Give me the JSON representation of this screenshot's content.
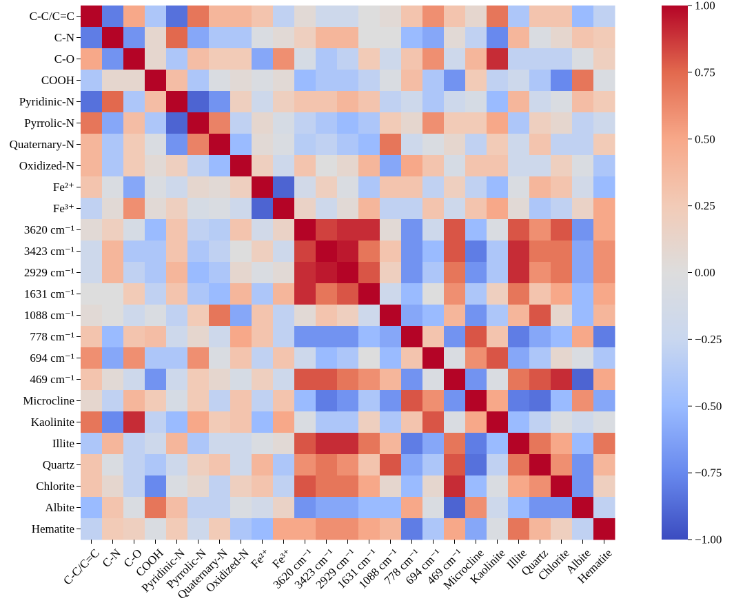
{
  "chart_data": {
    "type": "heatmap",
    "title": "",
    "xlabel": "",
    "ylabel": "",
    "row_labels": [
      "C-C/C=C",
      "C-N",
      "C-O",
      "COOH",
      "Pyridinic-N",
      "Pyrrolic-N",
      "Quaternary-N",
      "Oxidized-N",
      "Fe²⁺",
      "Fe³⁺",
      "3620 cm⁻¹",
      "3423 cm⁻¹",
      "2929 cm⁻¹",
      "1631 cm⁻¹",
      "1088 cm⁻¹",
      "778 cm⁻¹",
      "694 cm⁻¹",
      "469 cm⁻¹",
      "Microcline",
      "Kaolinite",
      "Illite",
      "Quartz",
      "Chlorite",
      "Albite",
      "Hematite"
    ],
    "col_labels": [
      "C-C/C=C",
      "C-N",
      "C-O",
      "COOH",
      "Pyridinic-N",
      "Pyrrolic-N",
      "Quaternary-N",
      "Oxidized-N",
      "Fe²⁺",
      "Fe³⁺",
      "3620 cm⁻¹",
      "3423 cm⁻¹",
      "2929 cm⁻¹",
      "1631 cm⁻¹",
      "1088 cm⁻¹",
      "778 cm⁻¹",
      "694 cm⁻¹",
      "469 cm⁻¹",
      "Microcline",
      "Kaolinite",
      "Illite",
      "Quartz",
      "Chlorite",
      "Albite",
      "Hematite"
    ],
    "values": [
      [
        1.0,
        -0.8,
        0.5,
        -0.4,
        -0.85,
        0.7,
        0.4,
        0.4,
        0.3,
        -0.3,
        0.05,
        -0.2,
        -0.2,
        0.0,
        0.05,
        0.3,
        0.6,
        0.3,
        0.1,
        0.7,
        -0.4,
        0.3,
        0.3,
        -0.5,
        -0.3
      ],
      [
        -0.8,
        1.0,
        -0.7,
        0.1,
        0.75,
        -0.6,
        -0.4,
        -0.4,
        -0.05,
        0.05,
        0.2,
        0.4,
        0.4,
        0.0,
        0.0,
        -0.5,
        -0.6,
        0.05,
        -0.3,
        -0.75,
        0.4,
        -0.05,
        0.1,
        0.3,
        0.25
      ],
      [
        0.5,
        -0.7,
        1.0,
        0.1,
        -0.4,
        0.35,
        0.25,
        0.25,
        -0.6,
        0.6,
        -0.1,
        -0.4,
        -0.3,
        0.25,
        -0.2,
        0.3,
        0.6,
        -0.2,
        0.4,
        0.9,
        -0.3,
        -0.3,
        -0.3,
        -0.05,
        0.2
      ],
      [
        -0.4,
        0.1,
        0.1,
        1.0,
        0.35,
        -0.4,
        -0.05,
        0.05,
        -0.05,
        0.05,
        -0.5,
        -0.4,
        -0.4,
        -0.3,
        -0.05,
        0.35,
        -0.4,
        -0.7,
        0.25,
        -0.3,
        -0.2,
        -0.4,
        -0.75,
        0.7,
        -0.05
      ],
      [
        -0.85,
        0.75,
        -0.4,
        0.35,
        1.0,
        -0.9,
        -0.7,
        0.2,
        -0.2,
        0.2,
        0.3,
        0.3,
        0.4,
        0.3,
        -0.3,
        -0.2,
        -0.4,
        -0.2,
        -0.1,
        -0.5,
        0.4,
        -0.2,
        -0.05,
        0.35,
        0.25
      ],
      [
        0.7,
        -0.6,
        0.35,
        -0.4,
        -0.9,
        1.0,
        0.65,
        -0.3,
        0.1,
        -0.1,
        -0.3,
        -0.4,
        -0.5,
        -0.4,
        0.25,
        0.1,
        0.6,
        0.25,
        0.25,
        0.5,
        -0.4,
        0.2,
        0.1,
        -0.3,
        -0.2
      ],
      [
        0.4,
        -0.4,
        0.25,
        -0.05,
        -0.7,
        0.65,
        1.0,
        -0.5,
        0.05,
        -0.05,
        -0.35,
        -0.3,
        -0.4,
        -0.5,
        0.7,
        -0.2,
        -0.05,
        0.1,
        -0.3,
        0.25,
        -0.2,
        0.3,
        -0.3,
        -0.3,
        0.25
      ],
      [
        0.4,
        -0.4,
        0.25,
        0.05,
        0.2,
        -0.3,
        -0.5,
        1.0,
        0.2,
        -0.2,
        0.3,
        0.0,
        0.1,
        0.4,
        -0.6,
        0.5,
        0.3,
        -0.1,
        0.3,
        0.3,
        -0.2,
        -0.2,
        0.2,
        -0.05,
        -0.4
      ],
      [
        0.3,
        -0.05,
        -0.6,
        -0.05,
        -0.2,
        0.1,
        0.05,
        0.2,
        1.0,
        -0.9,
        -0.15,
        0.2,
        -0.05,
        -0.4,
        0.3,
        0.3,
        -0.3,
        0.2,
        -0.3,
        -0.5,
        -0.05,
        0.4,
        0.3,
        -0.15,
        -0.5
      ],
      [
        -0.3,
        0.05,
        0.6,
        0.05,
        0.2,
        -0.1,
        -0.05,
        -0.2,
        -0.9,
        1.0,
        0.15,
        -0.2,
        0.05,
        0.4,
        -0.3,
        -0.3,
        0.3,
        -0.2,
        0.3,
        0.5,
        0.05,
        -0.4,
        -0.3,
        0.15,
        0.5
      ],
      [
        0.05,
        0.2,
        -0.1,
        -0.5,
        0.3,
        -0.3,
        -0.35,
        0.3,
        -0.15,
        0.15,
        1.0,
        0.85,
        0.9,
        0.9,
        0.05,
        -0.7,
        -0.2,
        0.8,
        -0.5,
        -0.05,
        0.8,
        0.6,
        0.8,
        -0.7,
        0.5
      ],
      [
        -0.2,
        0.4,
        -0.4,
        -0.4,
        0.3,
        -0.4,
        -0.3,
        0.0,
        0.2,
        -0.2,
        0.85,
        1.0,
        0.95,
        0.7,
        0.3,
        -0.7,
        -0.5,
        0.8,
        -0.8,
        -0.4,
        0.9,
        0.7,
        0.7,
        -0.6,
        0.6
      ],
      [
        -0.2,
        0.4,
        -0.3,
        -0.4,
        0.4,
        -0.5,
        -0.4,
        0.1,
        -0.05,
        0.05,
        0.9,
        0.95,
        1.0,
        0.8,
        0.2,
        -0.7,
        -0.4,
        0.7,
        -0.7,
        -0.4,
        0.9,
        0.6,
        0.7,
        -0.6,
        0.6
      ],
      [
        0.0,
        0.0,
        0.25,
        -0.3,
        0.3,
        -0.4,
        -0.5,
        0.4,
        -0.4,
        0.4,
        0.9,
        0.7,
        0.8,
        1.0,
        -0.2,
        -0.5,
        0.0,
        0.6,
        -0.4,
        0.2,
        0.7,
        0.3,
        0.5,
        -0.5,
        0.5
      ],
      [
        0.05,
        0.0,
        -0.2,
        -0.05,
        -0.3,
        0.25,
        0.7,
        -0.6,
        0.3,
        -0.3,
        0.05,
        0.3,
        0.2,
        -0.2,
        1.0,
        -0.6,
        -0.5,
        0.4,
        -0.7,
        -0.4,
        0.4,
        0.8,
        0.1,
        -0.5,
        0.4
      ],
      [
        0.3,
        -0.5,
        0.3,
        0.35,
        -0.2,
        0.1,
        -0.2,
        0.5,
        0.3,
        -0.3,
        -0.7,
        -0.7,
        -0.7,
        -0.5,
        -0.6,
        1.0,
        0.3,
        -0.7,
        0.8,
        0.3,
        -0.8,
        -0.6,
        -0.5,
        0.5,
        -0.8
      ],
      [
        0.6,
        -0.6,
        0.6,
        -0.4,
        -0.4,
        0.6,
        -0.05,
        0.3,
        -0.3,
        0.3,
        -0.2,
        -0.5,
        -0.4,
        0.0,
        -0.5,
        0.3,
        1.0,
        -0.05,
        0.6,
        0.8,
        -0.6,
        -0.4,
        0.1,
        -0.05,
        -0.4
      ],
      [
        0.3,
        0.05,
        -0.2,
        -0.7,
        -0.2,
        0.25,
        0.1,
        -0.1,
        0.2,
        -0.2,
        0.8,
        0.8,
        0.7,
        0.6,
        0.4,
        -0.7,
        -0.05,
        1.0,
        -0.7,
        -0.05,
        0.7,
        0.8,
        0.9,
        -0.9,
        0.5
      ],
      [
        0.1,
        -0.3,
        0.4,
        0.25,
        -0.1,
        0.25,
        -0.3,
        0.3,
        -0.3,
        0.3,
        -0.5,
        -0.8,
        -0.7,
        -0.4,
        -0.7,
        0.8,
        0.6,
        -0.7,
        1.0,
        0.5,
        -0.8,
        -0.85,
        -0.5,
        0.6,
        -0.6
      ],
      [
        0.7,
        -0.75,
        0.9,
        -0.3,
        -0.5,
        0.5,
        0.25,
        0.3,
        -0.5,
        0.5,
        -0.05,
        -0.4,
        -0.4,
        0.2,
        -0.4,
        0.3,
        0.8,
        -0.05,
        0.5,
        1.0,
        -0.5,
        -0.3,
        -0.05,
        -0.2,
        -0.05
      ],
      [
        -0.4,
        0.4,
        -0.3,
        -0.2,
        0.4,
        -0.4,
        -0.2,
        -0.2,
        -0.05,
        0.05,
        0.8,
        0.9,
        0.9,
        0.7,
        0.4,
        -0.8,
        -0.6,
        0.7,
        -0.8,
        -0.5,
        1.0,
        0.7,
        0.5,
        -0.5,
        0.7
      ],
      [
        0.3,
        -0.05,
        -0.3,
        -0.4,
        -0.2,
        0.2,
        0.3,
        -0.2,
        0.4,
        -0.4,
        0.6,
        0.7,
        0.6,
        0.3,
        0.8,
        -0.6,
        -0.4,
        0.8,
        -0.85,
        -0.3,
        0.7,
        1.0,
        0.6,
        -0.7,
        0.4
      ],
      [
        0.3,
        0.1,
        -0.3,
        -0.75,
        -0.05,
        0.1,
        -0.3,
        0.2,
        0.3,
        -0.3,
        0.8,
        0.7,
        0.7,
        0.5,
        0.1,
        -0.5,
        0.1,
        0.9,
        -0.5,
        -0.05,
        0.5,
        0.6,
        1.0,
        -0.7,
        0.2
      ],
      [
        -0.5,
        0.3,
        -0.05,
        0.7,
        0.35,
        -0.3,
        -0.3,
        -0.05,
        -0.15,
        0.15,
        -0.7,
        -0.6,
        -0.6,
        -0.5,
        -0.5,
        0.5,
        -0.05,
        -0.9,
        0.6,
        -0.2,
        -0.5,
        -0.7,
        -0.7,
        1.0,
        -0.3
      ],
      [
        -0.3,
        0.25,
        0.2,
        -0.05,
        0.25,
        -0.2,
        0.25,
        -0.4,
        -0.5,
        0.5,
        0.5,
        0.6,
        0.6,
        0.5,
        0.4,
        -0.8,
        -0.4,
        0.5,
        -0.6,
        -0.05,
        0.7,
        0.4,
        0.2,
        -0.3,
        1.0
      ]
    ],
    "colorbar": {
      "min": -1.0,
      "max": 1.0,
      "tick_labels": [
        "1.00",
        "0.75",
        "0.50",
        "0.25",
        "0.00",
        "−0.25",
        "−0.50",
        "−0.75",
        "−1.00"
      ],
      "tick_values": [
        1.0,
        0.75,
        0.5,
        0.25,
        0.0,
        -0.25,
        -0.5,
        -0.75,
        -1.0
      ],
      "colormap": "coolwarm",
      "color_stops": [
        "#3b4cc0",
        "#6889ee",
        "#9abbff",
        "#c9d7ef",
        "#dddddd",
        "#f2cbb7",
        "#f7a889",
        "#e2694e",
        "#b40426"
      ]
    }
  }
}
